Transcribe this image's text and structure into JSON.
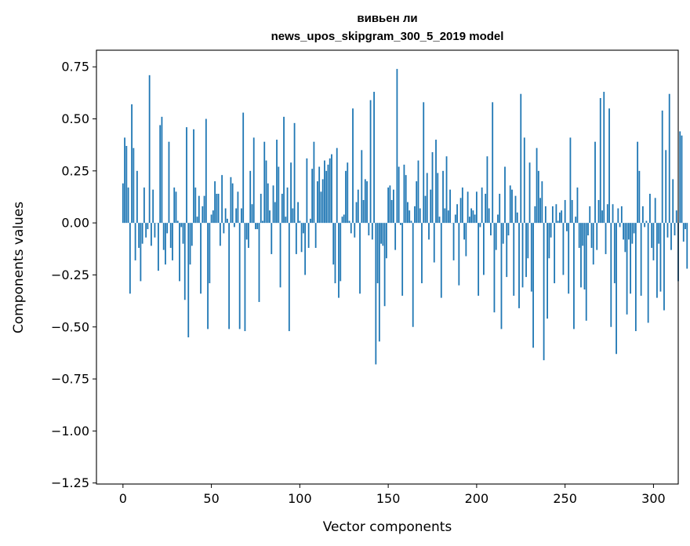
{
  "chart_data": {
    "type": "bar",
    "title_lines": [
      "вивьен ли",
      "news_upos_skipgram_300_5_2019 model"
    ],
    "xlabel": "Vector components",
    "ylabel": "Components values",
    "xlim": [
      -15,
      314
    ],
    "ylim": [
      -1.255,
      0.83
    ],
    "xticks": [
      0,
      50,
      100,
      150,
      200,
      250,
      300
    ],
    "xtick_labels": [
      "0",
      "50",
      "100",
      "150",
      "200",
      "250",
      "300"
    ],
    "yticks": [
      -1.25,
      -1.0,
      -0.75,
      -0.5,
      -0.25,
      0.0,
      0.25,
      0.5,
      0.75
    ],
    "ytick_labels": [
      "−1.25",
      "−1.00",
      "−0.75",
      "−0.50",
      "−0.25",
      "0.00",
      "0.25",
      "0.50",
      "0.75"
    ],
    "bar_color": "#1f77b4",
    "values": [
      0.19,
      0.41,
      0.37,
      0.17,
      -0.34,
      0.57,
      0.36,
      -0.18,
      0.25,
      -0.12,
      -0.28,
      -0.1,
      0.17,
      -0.07,
      -0.03,
      0.71,
      -0.11,
      0.16,
      -0.07,
      0.0,
      -0.23,
      0.47,
      0.51,
      -0.13,
      -0.2,
      -0.05,
      0.39,
      -0.12,
      -0.18,
      0.17,
      0.15,
      0.01,
      -0.28,
      -0.02,
      -0.1,
      -0.37,
      0.46,
      -0.55,
      -0.2,
      -0.11,
      0.45,
      0.17,
      0.03,
      0.13,
      -0.34,
      0.08,
      0.13,
      0.5,
      -0.51,
      -0.29,
      0.04,
      0.06,
      0.2,
      0.14,
      0.14,
      -0.11,
      0.23,
      -0.05,
      0.07,
      0.02,
      -0.51,
      0.22,
      0.19,
      -0.02,
      0.07,
      0.15,
      -0.51,
      0.07,
      0.53,
      -0.52,
      -0.08,
      -0.12,
      0.25,
      0.09,
      0.41,
      -0.03,
      -0.03,
      -0.38,
      0.14,
      0.01,
      0.39,
      0.3,
      0.19,
      0.06,
      -0.15,
      0.18,
      0.1,
      0.4,
      0.27,
      -0.31,
      0.14,
      0.51,
      0.03,
      0.17,
      -0.52,
      0.29,
      0.07,
      0.48,
      -0.15,
      0.1,
      0.01,
      -0.14,
      -0.05,
      -0.25,
      0.31,
      -0.12,
      0.02,
      0.26,
      0.39,
      -0.12,
      0.2,
      0.27,
      0.15,
      0.21,
      0.3,
      0.25,
      0.28,
      0.31,
      0.33,
      -0.2,
      -0.29,
      0.36,
      -0.36,
      -0.28,
      0.03,
      0.04,
      0.25,
      0.29,
      0.01,
      -0.05,
      0.55,
      -0.07,
      0.1,
      0.16,
      -0.34,
      0.35,
      0.11,
      0.21,
      0.2,
      -0.06,
      0.59,
      -0.08,
      0.63,
      -0.68,
      -0.29,
      -0.57,
      -0.1,
      -0.11,
      -0.4,
      -0.17,
      0.17,
      0.18,
      0.11,
      0.16,
      -0.13,
      0.74,
      0.27,
      -0.01,
      -0.35,
      0.28,
      0.23,
      0.1,
      0.06,
      0.01,
      -0.5,
      0.08,
      0.2,
      0.3,
      0.07,
      -0.29,
      0.58,
      0.13,
      0.24,
      -0.08,
      0.16,
      0.34,
      -0.19,
      0.4,
      0.24,
      0.03,
      -0.36,
      0.25,
      0.07,
      0.32,
      0.06,
      0.16,
      0.0,
      -0.18,
      0.04,
      0.09,
      -0.3,
      0.12,
      0.17,
      -0.08,
      -0.16,
      0.15,
      0.03,
      0.07,
      0.06,
      0.04,
      0.15,
      -0.35,
      -0.02,
      0.17,
      -0.25,
      0.14,
      0.32,
      0.07,
      -0.06,
      0.58,
      -0.43,
      -0.13,
      0.04,
      0.14,
      -0.51,
      -0.1,
      0.27,
      -0.26,
      -0.06,
      0.18,
      0.16,
      -0.35,
      0.13,
      0.05,
      -0.41,
      0.62,
      -0.31,
      0.41,
      -0.26,
      -0.17,
      0.29,
      -0.33,
      -0.6,
      0.08,
      0.36,
      0.25,
      0.12,
      0.2,
      -0.66,
      0.08,
      -0.46,
      -0.17,
      -0.07,
      0.08,
      -0.29,
      0.09,
      0.01,
      0.05,
      0.06,
      -0.25,
      0.11,
      -0.04,
      -0.34,
      0.41,
      0.11,
      -0.51,
      0.03,
      0.17,
      -0.12,
      -0.31,
      -0.11,
      -0.32,
      -0.47,
      -0.06,
      0.08,
      -0.12,
      -0.2,
      0.39,
      -0.13,
      0.11,
      0.6,
      0.06,
      0.63,
      -0.15,
      0.09,
      0.55,
      -0.5,
      0.09,
      -0.29,
      -0.63,
      0.07,
      -0.02,
      0.08,
      -0.08,
      -0.14,
      -0.44,
      -0.08,
      -0.34,
      -0.1,
      -0.05,
      -0.52,
      0.39,
      0.25,
      -0.35,
      0.08,
      -0.02,
      0.01,
      -0.48,
      0.14,
      -0.12,
      -0.18,
      0.12,
      -0.36,
      -0.1,
      -0.33,
      0.54,
      -0.42,
      0.35,
      -0.07,
      0.62,
      -0.13,
      0.21,
      -0.06,
      0.06,
      -0.28,
      0.44,
      0.42,
      -0.09,
      -0.03,
      -0.22
    ]
  }
}
